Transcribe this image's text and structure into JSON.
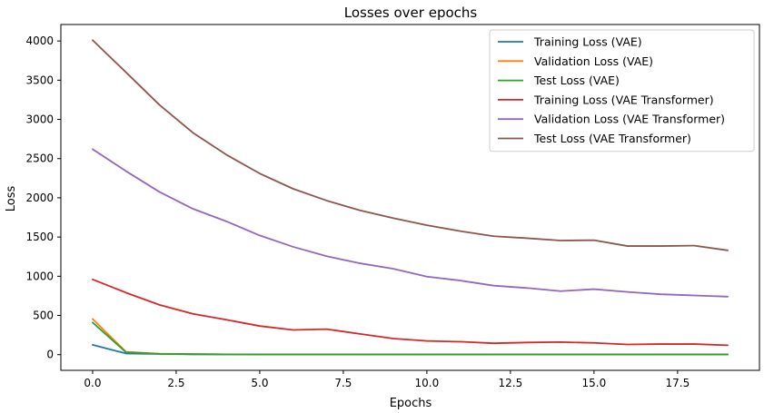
{
  "chart_data": {
    "type": "line",
    "title": "Losses over epochs",
    "xlabel": "Epochs",
    "ylabel": "Loss",
    "xlim": [
      -0.95,
      19.95
    ],
    "ylim": [
      -200,
      4210
    ],
    "xticks": [
      0.0,
      2.5,
      5.0,
      7.5,
      10.0,
      12.5,
      15.0,
      17.5
    ],
    "xtick_labels": [
      "0.0",
      "2.5",
      "5.0",
      "7.5",
      "10.0",
      "12.5",
      "15.0",
      "17.5"
    ],
    "yticks": [
      0,
      500,
      1000,
      1500,
      2000,
      2500,
      3000,
      3500,
      4000
    ],
    "ytick_labels": [
      "0",
      "500",
      "1000",
      "1500",
      "2000",
      "2500",
      "3000",
      "3500",
      "4000"
    ],
    "grid": false,
    "legend_position": "top-right",
    "x": [
      0,
      1,
      2,
      3,
      4,
      5,
      6,
      7,
      8,
      9,
      10,
      11,
      12,
      13,
      14,
      15,
      16,
      17,
      18,
      19
    ],
    "series": [
      {
        "name": "Training Loss (VAE)",
        "color": "#1f77b4",
        "values": [
          125,
          15,
          8,
          5,
          3,
          2,
          2,
          2,
          2,
          2,
          2,
          2,
          2,
          2,
          2,
          2,
          2,
          2,
          2,
          2
        ]
      },
      {
        "name": "Validation Loss (VAE)",
        "color": "#ff7f0e",
        "values": [
          455,
          35,
          12,
          6,
          4,
          3,
          3,
          3,
          3,
          3,
          3,
          3,
          3,
          3,
          3,
          3,
          3,
          3,
          3,
          3
        ]
      },
      {
        "name": "Test Loss (VAE)",
        "color": "#2ca02c",
        "values": [
          410,
          30,
          10,
          6,
          4,
          3,
          3,
          3,
          3,
          3,
          3,
          3,
          3,
          3,
          3,
          3,
          3,
          3,
          3,
          3
        ]
      },
      {
        "name": "Training Loss (VAE Transformer)",
        "color": "#d62728",
        "values": [
          960,
          790,
          635,
          520,
          445,
          365,
          315,
          325,
          265,
          205,
          175,
          165,
          145,
          155,
          160,
          150,
          130,
          135,
          135,
          120
        ]
      },
      {
        "name": "Validation Loss (VAE Transformer)",
        "color": "#9467bd",
        "values": [
          2620,
          2340,
          2075,
          1860,
          1700,
          1520,
          1375,
          1255,
          1165,
          1095,
          995,
          945,
          880,
          850,
          810,
          835,
          800,
          770,
          755,
          740
        ]
      },
      {
        "name": "Test Loss (VAE Transformer)",
        "color": "#8c564b",
        "values": [
          4010,
          3600,
          3185,
          2830,
          2550,
          2310,
          2115,
          1965,
          1840,
          1740,
          1650,
          1575,
          1510,
          1485,
          1455,
          1460,
          1385,
          1385,
          1390,
          1330
        ]
      }
    ]
  }
}
